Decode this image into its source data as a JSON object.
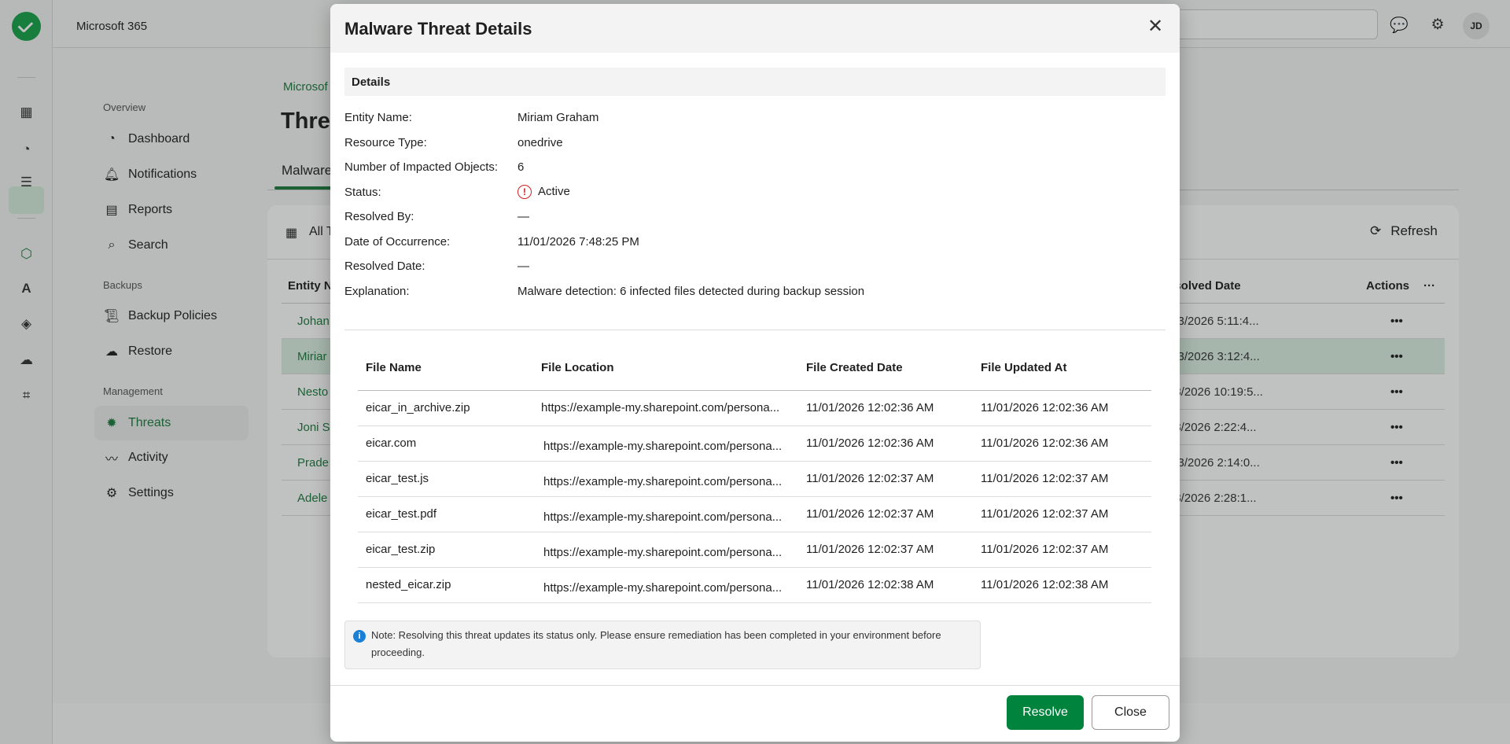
{
  "app": {
    "title": "Microsoft 365",
    "avatar_initials": "JD"
  },
  "rail": {
    "icons": [
      "dashboard-grid-icon",
      "chart-icon",
      "checklist-icon",
      "m365-icon",
      "azure-icon",
      "gcp-icon",
      "salesforce-icon",
      "scan-icon"
    ],
    "active": "m365-icon"
  },
  "sidebar": {
    "sections": [
      {
        "label": "Overview",
        "items": [
          {
            "label": "Dashboard",
            "icon": "dashboard-icon"
          },
          {
            "label": "Notifications",
            "icon": "bell-icon"
          },
          {
            "label": "Reports",
            "icon": "report-icon"
          },
          {
            "label": "Search",
            "icon": "search-icon"
          }
        ]
      },
      {
        "label": "Backups",
        "items": [
          {
            "label": "Backup Policies",
            "icon": "policy-icon"
          },
          {
            "label": "Restore",
            "icon": "restore-icon"
          }
        ]
      },
      {
        "label": "Management",
        "items": [
          {
            "label": "Threats",
            "icon": "bug-icon",
            "active": true
          },
          {
            "label": "Activity",
            "icon": "activity-icon"
          },
          {
            "label": "Settings",
            "icon": "gear-icon"
          }
        ]
      }
    ]
  },
  "main": {
    "breadcrumb": "Microsof",
    "title": "Threa",
    "tab": "Malware",
    "filter_label": "All T",
    "refresh_label": "Refresh",
    "columns": {
      "entity": "Entity N",
      "resolved": "esolved Date",
      "actions": "Actions"
    },
    "rows": [
      {
        "entity": "Johan",
        "resolved": "/03/2026 5:11:4..."
      },
      {
        "entity": "Miriar",
        "resolved": "/03/2026 3:12:4...",
        "selected": true
      },
      {
        "entity": "Nesto",
        "resolved": "03/2026 10:19:5..."
      },
      {
        "entity": "Joni S",
        "resolved": "03/2026 2:22:4..."
      },
      {
        "entity": "Prade",
        "resolved": "/03/2026 2:14:0..."
      },
      {
        "entity": "Adele",
        "resolved": "03/2026 2:28:1..."
      }
    ]
  },
  "modal": {
    "title": "Malware Threat Details",
    "section": "Details",
    "details": [
      {
        "label": "Entity Name:",
        "value": "Miriam Graham"
      },
      {
        "label": "Resource Type:",
        "value": "onedrive"
      },
      {
        "label": "Number of Impacted Objects:",
        "value": "6"
      },
      {
        "label": "Status:",
        "value": "Active",
        "icon": "error-circle-icon"
      },
      {
        "label": "Resolved By:",
        "value": "—"
      },
      {
        "label": "Date of Occurrence:",
        "value": "11/01/2026 7:48:25 PM"
      },
      {
        "label": "Resolved Date:",
        "value": "—"
      },
      {
        "label": "Explanation:",
        "value": "Malware detection: 6 infected files detected during backup session"
      }
    ],
    "files": {
      "headers": [
        "File Name",
        "File Location",
        "File Created Date",
        "File Updated At"
      ],
      "rows": [
        [
          "eicar_in_archive.zip",
          "https://example-my.sharepoint.com/persona...",
          "11/01/2026 12:02:36 AM",
          "11/01/2026 12:02:36 AM"
        ],
        [
          "eicar.com",
          "https://example-my.sharepoint.com/persona...",
          "11/01/2026 12:02:36 AM",
          "11/01/2026 12:02:36 AM"
        ],
        [
          "eicar_test.js",
          "https://example-my.sharepoint.com/persona...",
          "11/01/2026 12:02:37 AM",
          "11/01/2026 12:02:37 AM"
        ],
        [
          "eicar_test.pdf",
          "https://example-my.sharepoint.com/persona...",
          "11/01/2026 12:02:37 AM",
          "11/01/2026 12:02:37 AM"
        ],
        [
          "eicar_test.zip",
          "https://example-my.sharepoint.com/persona...",
          "11/01/2026 12:02:37 AM",
          "11/01/2026 12:02:37 AM"
        ],
        [
          "nested_eicar.zip",
          "https://example-my.sharepoint.com/persona...",
          "11/01/2026 12:02:38 AM",
          "11/01/2026 12:02:38 AM"
        ]
      ]
    },
    "note": "Note: Resolving this threat updates its status only. Please ensure remediation has been completed in your environment before proceeding.",
    "resolve_label": "Resolve",
    "close_label": "Close"
  },
  "colors": {
    "accent": "#00843d",
    "error": "#d32020",
    "info": "#1a7fd6"
  }
}
